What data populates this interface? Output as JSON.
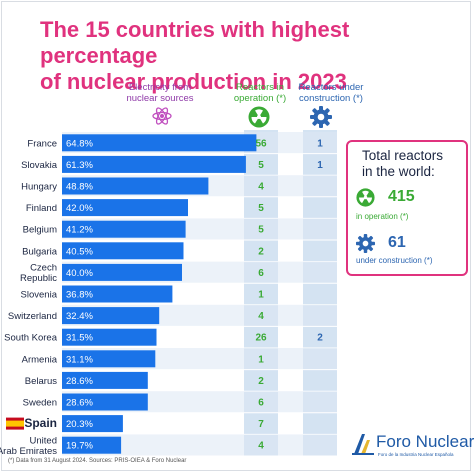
{
  "title_line1": "The 15 countries with highest percentage",
  "title_line2": "of nuclear production in 2023",
  "headers": {
    "electricity": "Electricity from nuclear sources",
    "operation": "Reactors in operation (*)",
    "construction": "Reactors under construction (*)"
  },
  "icons": {
    "electricity": "atom-icon",
    "operation": "nuclear-symbol-icon",
    "construction": "gear-icon"
  },
  "colors": {
    "title": "#e0327e",
    "bar": "#1a73e8",
    "operation": "#3aaa35",
    "construction": "#2d66b1",
    "row_stripe": "#dce8f4",
    "column_band": "#d4e3f2"
  },
  "chart_data": {
    "type": "bar",
    "orientation": "horizontal",
    "categories": [
      "France",
      "Slovakia",
      "Hungary",
      "Finland",
      "Belgium",
      "Bulgaria",
      "Czech Republic",
      "Slovenia",
      "Switzerland",
      "South Korea",
      "Armenia",
      "Belarus",
      "Sweden",
      "Spain",
      "United Arab Emirates"
    ],
    "category_lines": [
      [
        "France"
      ],
      [
        "Slovakia"
      ],
      [
        "Hungary"
      ],
      [
        "Finland"
      ],
      [
        "Belgium"
      ],
      [
        "Bulgaria"
      ],
      [
        "Czech",
        "Republic"
      ],
      [
        "Slovenia"
      ],
      [
        "Switzerland"
      ],
      [
        "South Korea"
      ],
      [
        "Armenia"
      ],
      [
        "Belarus"
      ],
      [
        "Sweden"
      ],
      [
        "Spain"
      ],
      [
        "United",
        "Arab Emirates"
      ]
    ],
    "values": [
      64.8,
      61.3,
      48.8,
      42.0,
      41.2,
      40.5,
      40.0,
      36.8,
      32.4,
      31.5,
      31.1,
      28.6,
      28.6,
      20.3,
      19.7
    ],
    "value_labels": [
      "64.8%",
      "61.3%",
      "48.8%",
      "42.0%",
      "41.2%",
      "40.5%",
      "40.0%",
      "36.8%",
      "32.4%",
      "31.5%",
      "31.1%",
      "28.6%",
      "28.6%",
      "20.3%",
      "19.7%"
    ],
    "reactors_in_operation": [
      56,
      5,
      4,
      5,
      5,
      2,
      6,
      1,
      4,
      26,
      1,
      2,
      6,
      7,
      4
    ],
    "reactors_under_construction": [
      1,
      1,
      null,
      null,
      null,
      null,
      null,
      null,
      null,
      2,
      null,
      null,
      null,
      null,
      null
    ],
    "highlight_category": "Spain",
    "xlim": [
      0,
      70
    ]
  },
  "totals": {
    "title_line1": "Total reactors",
    "title_line2": "in the world:",
    "operation_value": "415",
    "operation_label": "in operation (*)",
    "construction_value": "61",
    "construction_label": "under construction (*)"
  },
  "footnote": "(*) Data from 31 August 2024. Sources: PRIS-OIEA & Foro Nuclear",
  "logo": {
    "name": "Foro Nuclear",
    "subtitle": "Foro de la Industria Nuclear Española"
  }
}
